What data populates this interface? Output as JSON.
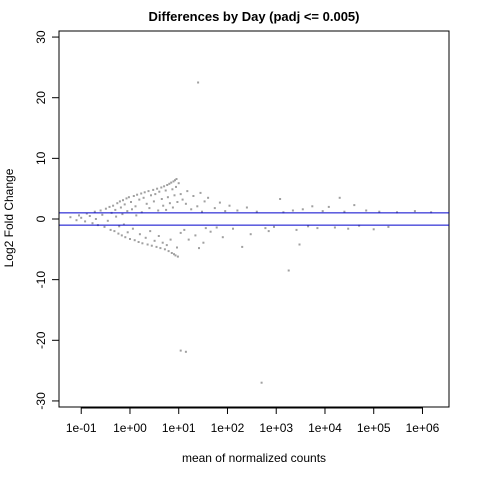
{
  "chart_data": {
    "type": "scatter",
    "title": "Differences by Day (padj <= 0.005)",
    "xlabel": "mean of normalized counts",
    "ylabel": "Log2 Fold Change",
    "x_scale": "log10",
    "xlim": [
      0.035,
      3500000
    ],
    "ylim": [
      -31,
      31
    ],
    "x_ticks": [
      0.1,
      1,
      10,
      100,
      1000,
      10000,
      100000,
      1000000
    ],
    "x_tick_labels": [
      "1e-01",
      "1e+00",
      "1e+01",
      "1e+02",
      "1e+03",
      "1e+04",
      "1e+05",
      "1e+06"
    ],
    "y_ticks": [
      -30,
      -20,
      -10,
      0,
      10,
      20,
      30
    ],
    "y_tick_labels": [
      "-30",
      "-20",
      "-10",
      "0",
      "10",
      "20",
      "30"
    ],
    "hlines": [
      1,
      -1
    ],
    "grid": false,
    "colors": {
      "points": "#a0a0a0",
      "hlines": "#0000cc",
      "axes": "#000000"
    },
    "points": [
      {
        "x": 0.06,
        "y": 0.3
      },
      {
        "x": 0.08,
        "y": -0.2
      },
      {
        "x": 0.09,
        "y": 0.6
      },
      {
        "x": 0.1,
        "y": 0.2
      },
      {
        "x": 0.12,
        "y": -0.4
      },
      {
        "x": 0.13,
        "y": 0.9
      },
      {
        "x": 0.15,
        "y": 0.5
      },
      {
        "x": 0.17,
        "y": -0.7
      },
      {
        "x": 0.19,
        "y": 1.2
      },
      {
        "x": 0.2,
        "y": 0.0
      },
      {
        "x": 0.22,
        "y": -1.0
      },
      {
        "x": 0.25,
        "y": 1.4
      },
      {
        "x": 0.27,
        "y": 0.7
      },
      {
        "x": 0.3,
        "y": -1.3
      },
      {
        "x": 0.32,
        "y": 1.7
      },
      {
        "x": 0.35,
        "y": -0.3
      },
      {
        "x": 0.38,
        "y": 2.0
      },
      {
        "x": 0.4,
        "y": -1.8
      },
      {
        "x": 0.42,
        "y": 1.0
      },
      {
        "x": 0.45,
        "y": 2.2
      },
      {
        "x": 0.48,
        "y": -2.0
      },
      {
        "x": 0.5,
        "y": 1.5
      },
      {
        "x": 0.52,
        "y": 0.4
      },
      {
        "x": 0.55,
        "y": 2.6
      },
      {
        "x": 0.58,
        "y": -2.4
      },
      {
        "x": 0.6,
        "y": -1.2
      },
      {
        "x": 0.62,
        "y": 2.9
      },
      {
        "x": 0.65,
        "y": 1.9
      },
      {
        "x": 0.68,
        "y": -2.7
      },
      {
        "x": 0.7,
        "y": 0.8
      },
      {
        "x": 0.72,
        "y": 3.1
      },
      {
        "x": 0.75,
        "y": -0.9
      },
      {
        "x": 0.78,
        "y": 2.4
      },
      {
        "x": 0.8,
        "y": -3.0
      },
      {
        "x": 0.85,
        "y": 3.4
      },
      {
        "x": 0.88,
        "y": 1.3
      },
      {
        "x": 0.9,
        "y": -2.2
      },
      {
        "x": 0.95,
        "y": 3.6
      },
      {
        "x": 1.0,
        "y": -3.3
      },
      {
        "x": 1.05,
        "y": 2.8
      },
      {
        "x": 1.1,
        "y": 1.6
      },
      {
        "x": 1.15,
        "y": -1.6
      },
      {
        "x": 1.2,
        "y": 3.8
      },
      {
        "x": 1.25,
        "y": -3.5
      },
      {
        "x": 1.3,
        "y": 2.1
      },
      {
        "x": 1.35,
        "y": 0.6
      },
      {
        "x": 1.4,
        "y": 4.0
      },
      {
        "x": 1.5,
        "y": -3.8
      },
      {
        "x": 1.55,
        "y": 3.2
      },
      {
        "x": 1.6,
        "y": -2.5
      },
      {
        "x": 1.7,
        "y": 4.2
      },
      {
        "x": 1.75,
        "y": 1.1
      },
      {
        "x": 1.8,
        "y": -4.0
      },
      {
        "x": 1.9,
        "y": 3.5
      },
      {
        "x": 2.0,
        "y": 4.4
      },
      {
        "x": 2.1,
        "y": -3.1
      },
      {
        "x": 2.2,
        "y": 2.5
      },
      {
        "x": 2.3,
        "y": -4.2
      },
      {
        "x": 2.4,
        "y": 4.6
      },
      {
        "x": 2.5,
        "y": 1.8
      },
      {
        "x": 2.6,
        "y": -2.0
      },
      {
        "x": 2.7,
        "y": 3.9
      },
      {
        "x": 2.8,
        "y": -4.4
      },
      {
        "x": 3.0,
        "y": 4.8
      },
      {
        "x": 3.1,
        "y": 2.9
      },
      {
        "x": 3.2,
        "y": -3.6
      },
      {
        "x": 3.3,
        "y": 4.1
      },
      {
        "x": 3.5,
        "y": -4.6
      },
      {
        "x": 3.6,
        "y": 5.0
      },
      {
        "x": 3.8,
        "y": 1.4
      },
      {
        "x": 3.9,
        "y": -2.8
      },
      {
        "x": 4.0,
        "y": 4.5
      },
      {
        "x": 4.2,
        "y": -4.8
      },
      {
        "x": 4.4,
        "y": 5.2
      },
      {
        "x": 4.5,
        "y": 3.3
      },
      {
        "x": 4.7,
        "y": -3.9
      },
      {
        "x": 4.8,
        "y": 2.2
      },
      {
        "x": 5.0,
        "y": 5.4
      },
      {
        "x": 5.2,
        "y": -5.0
      },
      {
        "x": 5.4,
        "y": 4.7
      },
      {
        "x": 5.5,
        "y": 1.5
      },
      {
        "x": 5.7,
        "y": -4.3
      },
      {
        "x": 5.8,
        "y": 5.6
      },
      {
        "x": 6.0,
        "y": 3.6
      },
      {
        "x": 6.2,
        "y": -5.3
      },
      {
        "x": 6.4,
        "y": 5.8
      },
      {
        "x": 6.6,
        "y": 2.6
      },
      {
        "x": 6.8,
        "y": -3.4
      },
      {
        "x": 7.0,
        "y": 6.0
      },
      {
        "x": 7.2,
        "y": -5.6
      },
      {
        "x": 7.4,
        "y": 4.9
      },
      {
        "x": 7.6,
        "y": 1.9
      },
      {
        "x": 7.8,
        "y": 6.2
      },
      {
        "x": 8.0,
        "y": -5.8
      },
      {
        "x": 8.2,
        "y": 3.9
      },
      {
        "x": 8.4,
        "y": 6.4
      },
      {
        "x": 8.6,
        "y": -6.0
      },
      {
        "x": 8.8,
        "y": 5.3
      },
      {
        "x": 9.0,
        "y": 6.6
      },
      {
        "x": 9.2,
        "y": -4.7
      },
      {
        "x": 9.4,
        "y": 2.8
      },
      {
        "x": 9.6,
        "y": -6.2
      },
      {
        "x": 10.0,
        "y": 5.9
      },
      {
        "x": 11,
        "y": 4.1
      },
      {
        "x": 11,
        "y": -2.3
      },
      {
        "x": 12,
        "y": 3.2
      },
      {
        "x": 13,
        "y": -1.8
      },
      {
        "x": 14,
        "y": 2.5
      },
      {
        "x": 15,
        "y": 4.6
      },
      {
        "x": 16,
        "y": -3.4
      },
      {
        "x": 18,
        "y": 1.6
      },
      {
        "x": 20,
        "y": 3.8
      },
      {
        "x": 22,
        "y": -2.7
      },
      {
        "x": 24,
        "y": 2.1
      },
      {
        "x": 26,
        "y": -4.8
      },
      {
        "x": 28,
        "y": 4.3
      },
      {
        "x": 30,
        "y": 1.2
      },
      {
        "x": 32,
        "y": -3.9
      },
      {
        "x": 34,
        "y": 2.9
      },
      {
        "x": 36,
        "y": -1.5
      },
      {
        "x": 40,
        "y": 3.5
      },
      {
        "x": 45,
        "y": -2.1
      },
      {
        "x": 11,
        "y": -21.7
      },
      {
        "x": 14,
        "y": -21.9
      },
      {
        "x": 25,
        "y": 22.5
      },
      {
        "x": 55,
        "y": 1.8
      },
      {
        "x": 60,
        "y": -1.4
      },
      {
        "x": 70,
        "y": 2.7
      },
      {
        "x": 80,
        "y": -3.0
      },
      {
        "x": 90,
        "y": 1.3
      },
      {
        "x": 110,
        "y": 2.2
      },
      {
        "x": 130,
        "y": -1.6
      },
      {
        "x": 160,
        "y": 1.4
      },
      {
        "x": 200,
        "y": -4.6
      },
      {
        "x": 250,
        "y": 1.9
      },
      {
        "x": 300,
        "y": -2.5
      },
      {
        "x": 400,
        "y": 1.2
      },
      {
        "x": 500,
        "y": -27.0
      },
      {
        "x": 600,
        "y": -1.5
      },
      {
        "x": 700,
        "y": -2.0
      },
      {
        "x": 900,
        "y": -1.3
      },
      {
        "x": 1200,
        "y": 3.3
      },
      {
        "x": 1400,
        "y": 1.1
      },
      {
        "x": 1800,
        "y": -8.5
      },
      {
        "x": 2200,
        "y": 1.4
      },
      {
        "x": 2600,
        "y": -1.8
      },
      {
        "x": 3000,
        "y": -4.2
      },
      {
        "x": 3500,
        "y": 1.6
      },
      {
        "x": 4500,
        "y": -1.2
      },
      {
        "x": 5500,
        "y": 2.1
      },
      {
        "x": 7000,
        "y": -1.5
      },
      {
        "x": 9000,
        "y": 1.3
      },
      {
        "x": 12000,
        "y": 2.0
      },
      {
        "x": 16000,
        "y": -1.4
      },
      {
        "x": 20000,
        "y": 3.5
      },
      {
        "x": 25000,
        "y": 1.2
      },
      {
        "x": 30000,
        "y": -1.6
      },
      {
        "x": 40000,
        "y": 2.3
      },
      {
        "x": 50000,
        "y": -1.1
      },
      {
        "x": 70000,
        "y": 1.4
      },
      {
        "x": 100000,
        "y": -1.7
      },
      {
        "x": 130000,
        "y": 1.2
      },
      {
        "x": 200000,
        "y": -1.3
      },
      {
        "x": 300000,
        "y": 1.1
      },
      {
        "x": 700000,
        "y": 1.3
      },
      {
        "x": 1500000,
        "y": 1.1
      }
    ]
  }
}
